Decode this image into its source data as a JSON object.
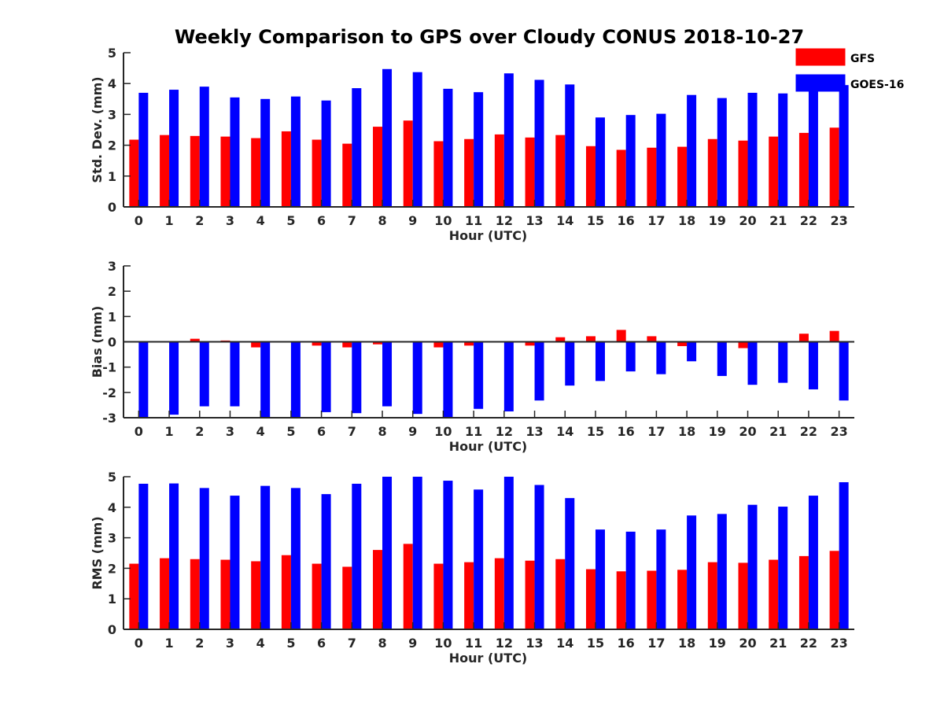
{
  "chart_data": {
    "title": "Weekly Comparison to GPS over Cloudy CONUS 2018-10-27",
    "legend": {
      "placement": "top-right",
      "entries": [
        "GFS",
        "GOES-16"
      ]
    },
    "colors": {
      "GFS": "#ff0000",
      "GOES-16": "#0000ff",
      "axis": "#262626"
    },
    "panels": [
      {
        "type": "bar",
        "ylabel": "Std. Dev. (mm)",
        "xlabel": "Hour (UTC)",
        "ylim": [
          0,
          5
        ],
        "yticks": [
          "0",
          "1",
          "2",
          "3",
          "4",
          "5"
        ],
        "categories": [
          "0",
          "1",
          "2",
          "3",
          "4",
          "5",
          "6",
          "7",
          "8",
          "9",
          "10",
          "11",
          "12",
          "13",
          "14",
          "15",
          "16",
          "17",
          "18",
          "19",
          "20",
          "21",
          "22",
          "23"
        ],
        "series": [
          {
            "name": "GFS",
            "values": [
              2.18,
              2.33,
              2.3,
              2.28,
              2.23,
              2.45,
              2.18,
              2.05,
              2.6,
              2.8,
              2.13,
              2.2,
              2.35,
              2.25,
              2.33,
              1.97,
              1.85,
              1.92,
              1.95,
              2.2,
              2.15,
              2.28,
              2.4,
              2.57
            ]
          },
          {
            "name": "GOES-16",
            "values": [
              3.7,
              3.8,
              3.9,
              3.55,
              3.5,
              3.58,
              3.45,
              3.85,
              4.47,
              4.37,
              3.83,
              3.72,
              4.33,
              4.12,
              3.97,
              2.9,
              2.98,
              3.02,
              3.63,
              3.53,
              3.7,
              3.68,
              3.95,
              3.95
            ]
          }
        ]
      },
      {
        "type": "bar",
        "ylabel": "Bias (mm)",
        "xlabel": "Hour (UTC)",
        "ylim": [
          -3,
          3
        ],
        "yticks": [
          "-3",
          "-2",
          "-1",
          "0",
          "1",
          "2",
          "3"
        ],
        "categories": [
          "0",
          "1",
          "2",
          "3",
          "4",
          "5",
          "6",
          "7",
          "8",
          "9",
          "10",
          "11",
          "12",
          "13",
          "14",
          "15",
          "16",
          "17",
          "18",
          "19",
          "20",
          "21",
          "22",
          "23"
        ],
        "series": [
          {
            "name": "GFS",
            "values": [
              0.0,
              0.02,
              0.12,
              0.05,
              -0.22,
              0.02,
              -0.15,
              -0.22,
              -0.1,
              0.0,
              -0.22,
              -0.15,
              -0.03,
              -0.15,
              0.18,
              0.22,
              0.47,
              0.22,
              -0.17,
              0.0,
              -0.25,
              0.0,
              0.32,
              0.43
            ]
          },
          {
            "name": "GOES-16",
            "values": [
              -3.0,
              -2.88,
              -2.55,
              -2.55,
              -3.0,
              -2.97,
              -2.78,
              -2.82,
              -2.55,
              -2.85,
              -3.0,
              -2.65,
              -2.75,
              -2.32,
              -1.73,
              -1.55,
              -1.17,
              -1.28,
              -0.77,
              -1.35,
              -1.7,
              -1.62,
              -1.88,
              -2.32
            ]
          }
        ]
      },
      {
        "type": "bar",
        "ylabel": "RMS (mm)",
        "xlabel": "Hour (UTC)",
        "ylim": [
          0,
          5
        ],
        "yticks": [
          "0",
          "1",
          "2",
          "3",
          "4",
          "5"
        ],
        "categories": [
          "0",
          "1",
          "2",
          "3",
          "4",
          "5",
          "6",
          "7",
          "8",
          "9",
          "10",
          "11",
          "12",
          "13",
          "14",
          "15",
          "16",
          "17",
          "18",
          "19",
          "20",
          "21",
          "22",
          "23"
        ],
        "series": [
          {
            "name": "GFS",
            "values": [
              2.15,
              2.33,
              2.3,
              2.28,
              2.23,
              2.43,
              2.15,
              2.05,
              2.6,
              2.8,
              2.15,
              2.2,
              2.33,
              2.25,
              2.3,
              1.97,
              1.9,
              1.92,
              1.95,
              2.2,
              2.18,
              2.28,
              2.4,
              2.57
            ]
          },
          {
            "name": "GOES-16",
            "values": [
              4.77,
              4.78,
              4.63,
              4.38,
              4.7,
              4.63,
              4.43,
              4.77,
              5.0,
              5.0,
              4.87,
              4.58,
              5.0,
              4.73,
              4.3,
              3.27,
              3.2,
              3.27,
              3.73,
              3.78,
              4.08,
              4.02,
              4.38,
              4.82
            ]
          }
        ]
      }
    ]
  }
}
